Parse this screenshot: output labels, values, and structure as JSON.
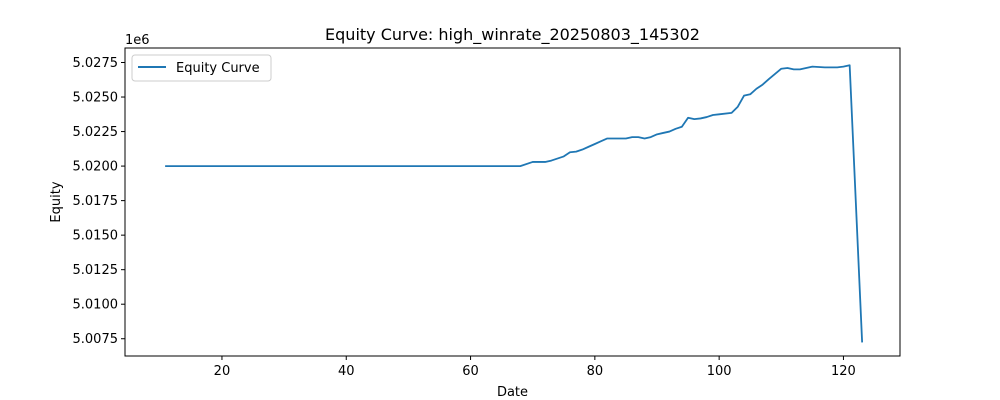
{
  "chart_data": {
    "type": "line",
    "title": "Equity Curve: high_winrate_20250803_145302",
    "xlabel": "Date",
    "ylabel": "Equity",
    "offset_label": "1e6",
    "xlim": [
      4.4,
      129.1
    ],
    "ylim": [
      5.00625,
      5.02855
    ],
    "xticks": [
      20,
      40,
      60,
      80,
      100,
      120
    ],
    "xtick_labels": [
      "20",
      "40",
      "60",
      "80",
      "100",
      "120"
    ],
    "yticks": [
      5.0075,
      5.01,
      5.0125,
      5.015,
      5.0175,
      5.02,
      5.0225,
      5.025,
      5.0275
    ],
    "ytick_labels": [
      "5.0075",
      "5.0100",
      "5.0125",
      "5.0150",
      "5.0175",
      "5.0200",
      "5.0225",
      "5.0250",
      "5.0275"
    ],
    "grid": false,
    "legend": {
      "position": "top-left"
    },
    "colors": {
      "line": "#1f77b4"
    },
    "series": [
      {
        "name": "Equity Curve",
        "x": [
          11,
          68,
          70,
          72,
          73,
          75,
          76,
          77,
          78,
          79,
          80,
          81,
          82,
          83,
          84,
          85,
          86,
          87,
          88,
          89,
          90,
          91,
          92,
          93,
          94,
          95,
          96,
          97,
          98,
          99,
          100,
          102,
          103,
          104,
          105,
          106,
          107,
          108,
          110,
          111,
          112,
          113,
          115,
          117,
          119,
          120,
          121,
          123
        ],
        "y": [
          5.02,
          5.02,
          5.0203,
          5.0203,
          5.0204,
          5.0207,
          5.021,
          5.02105,
          5.0212,
          5.0214,
          5.0216,
          5.0218,
          5.022,
          5.022,
          5.022,
          5.022,
          5.0221,
          5.0221,
          5.022,
          5.0221,
          5.0223,
          5.0224,
          5.0225,
          5.0227,
          5.02285,
          5.0235,
          5.0234,
          5.02345,
          5.02355,
          5.0237,
          5.02375,
          5.02385,
          5.0243,
          5.0251,
          5.0252,
          5.0256,
          5.0259,
          5.0263,
          5.02705,
          5.0271,
          5.027,
          5.027,
          5.0272,
          5.02715,
          5.02715,
          5.0272,
          5.0273,
          5.0073
        ]
      }
    ]
  }
}
